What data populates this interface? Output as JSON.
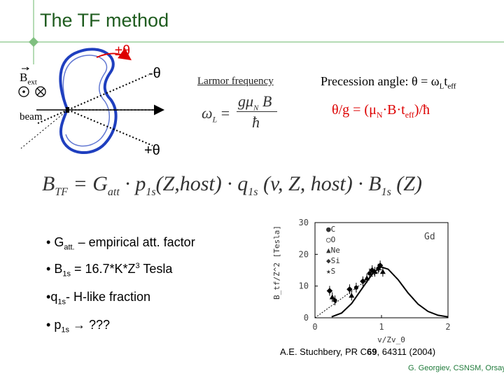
{
  "slide": {
    "title": "The TF method"
  },
  "diagram": {
    "pm_theta": "±θ",
    "minus_theta": "-θ",
    "plus_theta": "+θ",
    "b_label": "B",
    "b_sub": "ext",
    "beam_label": "beam"
  },
  "larmor": {
    "label": "Larmor frequency",
    "omega": "ω",
    "omega_sub": "L",
    "equals": "=",
    "numerator": "gμ",
    "numerator_sub": "N",
    "numerator_tail": "B",
    "denominator": "ħ"
  },
  "precession": {
    "label": "Precession angle: θ = ω",
    "label_sub": "L",
    "label_t": "t",
    "label_t_sub": "eff",
    "ratio_pre": "θ/g = (μ",
    "ratio_sub1": "N",
    "ratio_mid": "·B·t",
    "ratio_sub2": "eff",
    "ratio_post": ")/ħ"
  },
  "formula": {
    "lhs": "B",
    "lhs_sub": "TF",
    "eq": " = G",
    "g_sub": "att",
    "p_part": " · p",
    "p_sub": "1s",
    "p_args": "(Z,host) · q",
    "q_sub": "1s",
    "q_args": " (v, Z, host) · B",
    "b_sub": "1s",
    "b_args": " (Z)"
  },
  "bullets": [
    {
      "pre": "G",
      "sub": "att.",
      "post": " – empirical att. factor"
    },
    {
      "pre": "B",
      "sub": "1s",
      "post": " = 16.7*K*Z",
      "sup": "3",
      "tail": " Tesla"
    },
    {
      "pre": "q",
      "sub": "1s",
      "post": "- H-like fraction"
    },
    {
      "pre": "p",
      "sub": "1s",
      "post": " → ???"
    }
  ],
  "chart_data": {
    "type": "scatter",
    "annotation": "Gd",
    "ylabel": "B_tf/Z^2 [Tesla]",
    "xlabel": "v/Zv_0",
    "xlim": [
      0,
      2
    ],
    "ylim": [
      0,
      30
    ],
    "x_ticks": [
      "0",
      "1",
      "2"
    ],
    "y_ticks": [
      "0",
      "10",
      "20",
      "30"
    ],
    "legend": [
      "C",
      "O",
      "Ne",
      "Si",
      "S"
    ],
    "curve": {
      "x": [
        0.25,
        0.4,
        0.55,
        0.7,
        0.85,
        0.95,
        1.0,
        1.1,
        1.25,
        1.4,
        1.55,
        1.7,
        1.85,
        2.0
      ],
      "y": [
        0.3,
        1.5,
        4.5,
        9.0,
        13.5,
        15.5,
        16.0,
        15.3,
        12.0,
        7.8,
        4.3,
        2.0,
        0.8,
        0.3
      ]
    },
    "line": {
      "x": [
        0,
        1.05
      ],
      "y": [
        0,
        16.0
      ]
    },
    "points": [
      {
        "x": 0.22,
        "y": 8.5
      },
      {
        "x": 0.26,
        "y": 6.5
      },
      {
        "x": 0.3,
        "y": 5.5
      },
      {
        "x": 0.52,
        "y": 9.0
      },
      {
        "x": 0.55,
        "y": 7.0
      },
      {
        "x": 0.62,
        "y": 9.5
      },
      {
        "x": 0.72,
        "y": 11.5
      },
      {
        "x": 0.78,
        "y": 12.5
      },
      {
        "x": 0.82,
        "y": 14.0
      },
      {
        "x": 0.86,
        "y": 15.0
      },
      {
        "x": 0.9,
        "y": 14.5
      },
      {
        "x": 0.95,
        "y": 15.5
      },
      {
        "x": 0.98,
        "y": 16.5
      },
      {
        "x": 1.02,
        "y": 14.5
      }
    ]
  },
  "citation": {
    "pre": "A.E. Stuchbery, PR C",
    "bold": "69",
    "post": ", 64311 (2004)"
  },
  "author": "G. Georgiev, CSNSM, Orsay"
}
